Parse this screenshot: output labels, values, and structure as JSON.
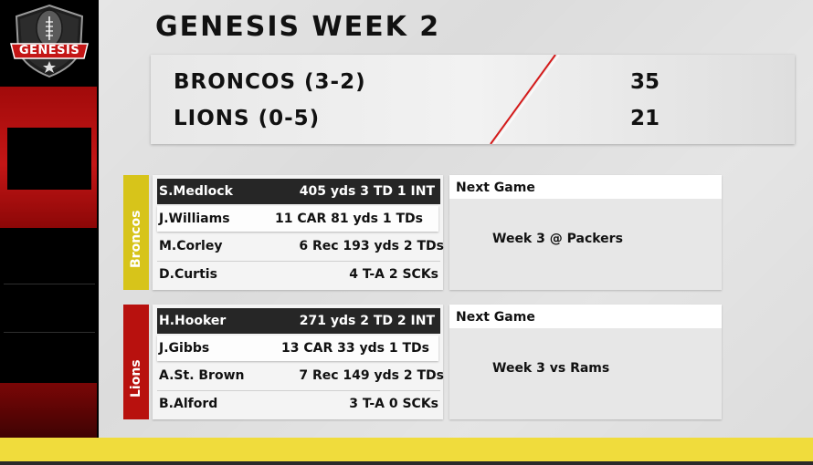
{
  "brand": {
    "logo_text": "GENESIS"
  },
  "title": "GENESIS WEEK 2",
  "score": {
    "home": {
      "team": "BRONCOS (3-2)",
      "score": "35"
    },
    "away": {
      "team": "LIONS (0-5)",
      "score": "21"
    }
  },
  "teams": [
    {
      "name": "Broncos",
      "color": "#d7c41a",
      "players": [
        {
          "name": "S.Medlock",
          "stat": "405 yds 3 TD 1 INT"
        },
        {
          "name": "J.Williams",
          "stat": "11 CAR 81 yds 1 TDs"
        },
        {
          "name": "M.Corley",
          "stat": "6 Rec 193 yds 2 TDs"
        },
        {
          "name": "D.Curtis",
          "stat": "4 T-A 2 SCKs"
        }
      ],
      "next_game": {
        "label": "Next Game",
        "value": "Week 3 @ Packers"
      }
    },
    {
      "name": "Lions",
      "color": "#b8110e",
      "players": [
        {
          "name": "H.Hooker",
          "stat": "271 yds 2 TD 2 INT"
        },
        {
          "name": "J.Gibbs",
          "stat": "13 CAR 33 yds 1 TDs"
        },
        {
          "name": "A.St. Brown",
          "stat": "7 Rec 149 yds 2 TDs"
        },
        {
          "name": "B.Alford",
          "stat": "3 T-A 0 SCKs"
        }
      ],
      "next_game": {
        "label": "Next Game",
        "value": "Week 3 vs Rams"
      }
    }
  ],
  "colors": {
    "accent_red": "#c41616",
    "accent_yellow": "#f0dc3c",
    "dark": "#262626"
  },
  "icons": {
    "logo": "genesis-football-shield-icon",
    "star": "star-icon"
  }
}
